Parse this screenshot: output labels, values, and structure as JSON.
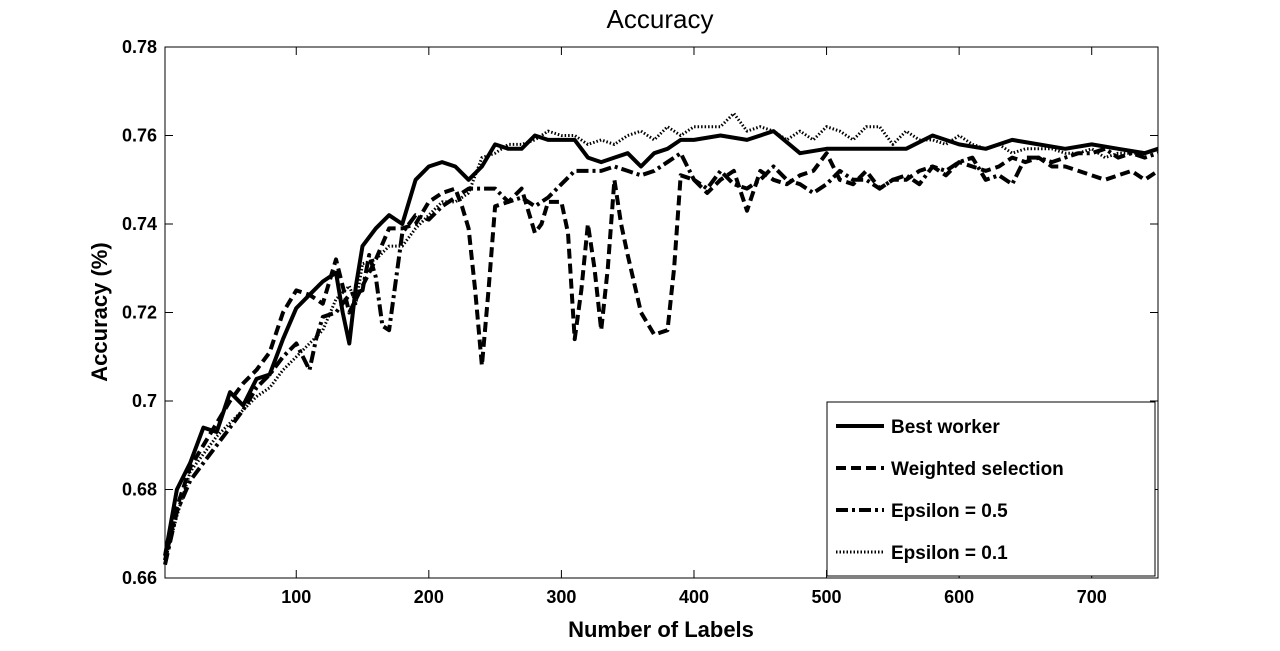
{
  "chart_data": {
    "type": "line",
    "title": "Accuracy",
    "xlabel": "Number of Labels",
    "ylabel": "Accuracy (%)",
    "xlim": [
      1,
      750
    ],
    "ylim": [
      0.66,
      0.78
    ],
    "xticks": [
      100,
      200,
      300,
      400,
      500,
      600,
      700
    ],
    "xtick_labels": [
      "100",
      "200",
      "300",
      "400",
      "500",
      "600",
      "700"
    ],
    "yticks": [
      0.66,
      0.68,
      0.7,
      0.72,
      0.74,
      0.76,
      0.78
    ],
    "ytick_labels": [
      "0.66",
      "0.68",
      "0.7",
      "0.72",
      "0.74",
      "0.76",
      "0.78"
    ],
    "grid": false,
    "legend_position": "bottom-right",
    "series": [
      {
        "name": "Best worker",
        "style": "solid",
        "x": [
          1,
          10,
          20,
          30,
          40,
          50,
          60,
          70,
          80,
          90,
          100,
          110,
          120,
          130,
          135,
          140,
          145,
          150,
          160,
          170,
          180,
          190,
          200,
          210,
          220,
          230,
          240,
          250,
          260,
          270,
          280,
          290,
          300,
          310,
          320,
          330,
          340,
          350,
          360,
          370,
          380,
          390,
          400,
          420,
          440,
          460,
          480,
          500,
          520,
          540,
          560,
          580,
          600,
          620,
          640,
          660,
          680,
          700,
          720,
          740,
          750
        ],
        "y": [
          0.665,
          0.68,
          0.686,
          0.694,
          0.693,
          0.702,
          0.699,
          0.705,
          0.706,
          0.714,
          0.721,
          0.724,
          0.727,
          0.729,
          0.72,
          0.713,
          0.726,
          0.735,
          0.739,
          0.742,
          0.74,
          0.75,
          0.753,
          0.754,
          0.753,
          0.75,
          0.753,
          0.758,
          0.757,
          0.757,
          0.76,
          0.759,
          0.759,
          0.759,
          0.755,
          0.754,
          0.755,
          0.756,
          0.753,
          0.756,
          0.757,
          0.759,
          0.759,
          0.76,
          0.759,
          0.761,
          0.756,
          0.757,
          0.757,
          0.757,
          0.757,
          0.76,
          0.758,
          0.757,
          0.759,
          0.758,
          0.757,
          0.758,
          0.757,
          0.756,
          0.757
        ]
      },
      {
        "name": "Weighted selection",
        "style": "dashed",
        "x": [
          1,
          10,
          20,
          30,
          40,
          50,
          60,
          70,
          80,
          90,
          100,
          110,
          120,
          130,
          140,
          150,
          160,
          170,
          180,
          190,
          200,
          210,
          220,
          225,
          230,
          235,
          240,
          245,
          250,
          260,
          270,
          280,
          285,
          290,
          300,
          305,
          310,
          315,
          320,
          325,
          330,
          335,
          340,
          345,
          350,
          360,
          370,
          380,
          385,
          390,
          400,
          410,
          420,
          430,
          440,
          450,
          460,
          470,
          480,
          490,
          500,
          510,
          520,
          530,
          540,
          550,
          560,
          570,
          580,
          590,
          600,
          610,
          620,
          630,
          640,
          650,
          660,
          670,
          680,
          690,
          700,
          710,
          720,
          730,
          740,
          750
        ],
        "y": [
          0.664,
          0.676,
          0.685,
          0.69,
          0.695,
          0.7,
          0.704,
          0.707,
          0.711,
          0.72,
          0.725,
          0.724,
          0.722,
          0.732,
          0.72,
          0.726,
          0.732,
          0.739,
          0.739,
          0.74,
          0.745,
          0.747,
          0.748,
          0.744,
          0.739,
          0.725,
          0.708,
          0.725,
          0.744,
          0.745,
          0.748,
          0.738,
          0.74,
          0.745,
          0.745,
          0.738,
          0.714,
          0.725,
          0.74,
          0.73,
          0.716,
          0.73,
          0.75,
          0.74,
          0.733,
          0.72,
          0.715,
          0.716,
          0.73,
          0.751,
          0.75,
          0.747,
          0.75,
          0.752,
          0.743,
          0.752,
          0.75,
          0.749,
          0.751,
          0.752,
          0.756,
          0.75,
          0.749,
          0.752,
          0.748,
          0.75,
          0.75,
          0.752,
          0.753,
          0.751,
          0.754,
          0.753,
          0.752,
          0.753,
          0.755,
          0.754,
          0.755,
          0.753,
          0.753,
          0.752,
          0.751,
          0.75,
          0.751,
          0.752,
          0.75,
          0.752
        ]
      },
      {
        "name": "Epsilon = 0.5",
        "style": "dashdot",
        "x": [
          1,
          10,
          20,
          30,
          40,
          50,
          60,
          70,
          80,
          90,
          100,
          110,
          115,
          120,
          130,
          140,
          150,
          155,
          160,
          165,
          170,
          180,
          190,
          200,
          210,
          220,
          230,
          240,
          250,
          260,
          270,
          280,
          290,
          300,
          310,
          320,
          330,
          340,
          350,
          360,
          370,
          380,
          390,
          400,
          410,
          420,
          430,
          440,
          450,
          460,
          470,
          480,
          490,
          500,
          510,
          520,
          530,
          540,
          550,
          560,
          570,
          580,
          590,
          600,
          610,
          620,
          630,
          640,
          650,
          660,
          670,
          680,
          690,
          700,
          710,
          720,
          730,
          740,
          750
        ],
        "y": [
          0.663,
          0.675,
          0.682,
          0.686,
          0.69,
          0.694,
          0.698,
          0.703,
          0.706,
          0.71,
          0.713,
          0.707,
          0.714,
          0.719,
          0.72,
          0.724,
          0.725,
          0.733,
          0.728,
          0.717,
          0.716,
          0.738,
          0.742,
          0.741,
          0.744,
          0.746,
          0.748,
          0.748,
          0.748,
          0.745,
          0.746,
          0.744,
          0.746,
          0.749,
          0.752,
          0.752,
          0.752,
          0.753,
          0.752,
          0.751,
          0.752,
          0.754,
          0.756,
          0.75,
          0.748,
          0.752,
          0.749,
          0.748,
          0.75,
          0.753,
          0.75,
          0.749,
          0.747,
          0.749,
          0.752,
          0.75,
          0.75,
          0.748,
          0.75,
          0.751,
          0.749,
          0.753,
          0.752,
          0.754,
          0.755,
          0.75,
          0.751,
          0.749,
          0.755,
          0.755,
          0.754,
          0.755,
          0.756,
          0.756,
          0.757,
          0.755,
          0.756,
          0.755,
          0.756
        ]
      },
      {
        "name": "Epsilon = 0.1",
        "style": "dotted",
        "x": [
          1,
          10,
          20,
          30,
          40,
          50,
          60,
          70,
          80,
          90,
          100,
          110,
          120,
          130,
          140,
          145,
          150,
          160,
          170,
          180,
          190,
          200,
          210,
          220,
          230,
          240,
          250,
          260,
          270,
          280,
          290,
          300,
          310,
          320,
          330,
          340,
          350,
          360,
          370,
          380,
          390,
          400,
          410,
          420,
          430,
          440,
          450,
          460,
          470,
          480,
          490,
          500,
          510,
          520,
          530,
          540,
          550,
          560,
          570,
          580,
          590,
          600,
          610,
          620,
          630,
          640,
          650,
          660,
          670,
          680,
          690,
          700,
          710,
          720,
          730,
          740,
          750
        ],
        "y": [
          0.664,
          0.674,
          0.684,
          0.688,
          0.692,
          0.695,
          0.698,
          0.701,
          0.703,
          0.707,
          0.71,
          0.713,
          0.716,
          0.723,
          0.726,
          0.722,
          0.731,
          0.732,
          0.735,
          0.735,
          0.739,
          0.742,
          0.745,
          0.745,
          0.747,
          0.755,
          0.756,
          0.758,
          0.758,
          0.759,
          0.761,
          0.76,
          0.76,
          0.758,
          0.759,
          0.758,
          0.76,
          0.761,
          0.759,
          0.762,
          0.76,
          0.762,
          0.762,
          0.762,
          0.765,
          0.761,
          0.762,
          0.761,
          0.759,
          0.761,
          0.759,
          0.762,
          0.761,
          0.759,
          0.762,
          0.762,
          0.758,
          0.761,
          0.759,
          0.759,
          0.758,
          0.76,
          0.758,
          0.757,
          0.758,
          0.756,
          0.757,
          0.757,
          0.757,
          0.756,
          0.756,
          0.757,
          0.755,
          0.756,
          0.756,
          0.756,
          0.757
        ]
      }
    ]
  }
}
